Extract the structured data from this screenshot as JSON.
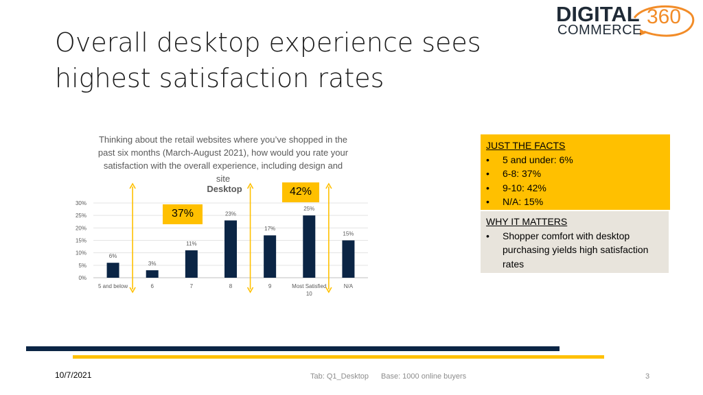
{
  "slide": {
    "title_line1": "Overall desktop experience sees",
    "title_line2": "highest satisfaction rates"
  },
  "logo": {
    "word1": "DIGITAL",
    "word2": "COMMERCE",
    "number": "360",
    "accent_color": "#f28c28"
  },
  "chart_data": {
    "type": "bar",
    "title": "Thinking about the retail websites where you’ve shopped in the past six months (March-August 2021), how would you rate your satisfaction with the overall experience, including design and site",
    "subtitle": "Desktop",
    "categories": [
      "5 and below",
      "6",
      "7",
      "8",
      "9",
      "Most Satisfied 10",
      "N/A"
    ],
    "values": [
      6,
      3,
      11,
      23,
      17,
      25,
      15
    ],
    "data_labels": [
      "6%",
      "3%",
      "11%",
      "23%",
      "17%",
      "25%",
      "15%"
    ],
    "yticks": [
      "0%",
      "5%",
      "10%",
      "15%",
      "20%",
      "25%",
      "30%"
    ],
    "ylim": [
      0,
      30
    ],
    "xlabel": "",
    "ylabel": "",
    "bar_color": "#0b2545",
    "grid": true,
    "annotations": {
      "group_6_8": "37%",
      "group_9_10": "42%"
    }
  },
  "facts_box": {
    "heading": "JUST THE FACTS",
    "items": [
      "5 and under:  6%",
      "6-8:  37%",
      "9-10:  42%",
      "N/A:  15%"
    ]
  },
  "matters_box": {
    "heading": "WHY IT MATTERS",
    "items": [
      "Shopper comfort with desktop purchasing yields high satisfaction rates"
    ]
  },
  "footer": {
    "date": "10/7/2021",
    "tab": "Tab: Q1_Desktop",
    "base": "Base:  1000 online buyers",
    "page": "3"
  },
  "colors": {
    "accent_gold": "#ffc000",
    "navy": "#0b2545",
    "gray_box": "#e8e4dc"
  }
}
